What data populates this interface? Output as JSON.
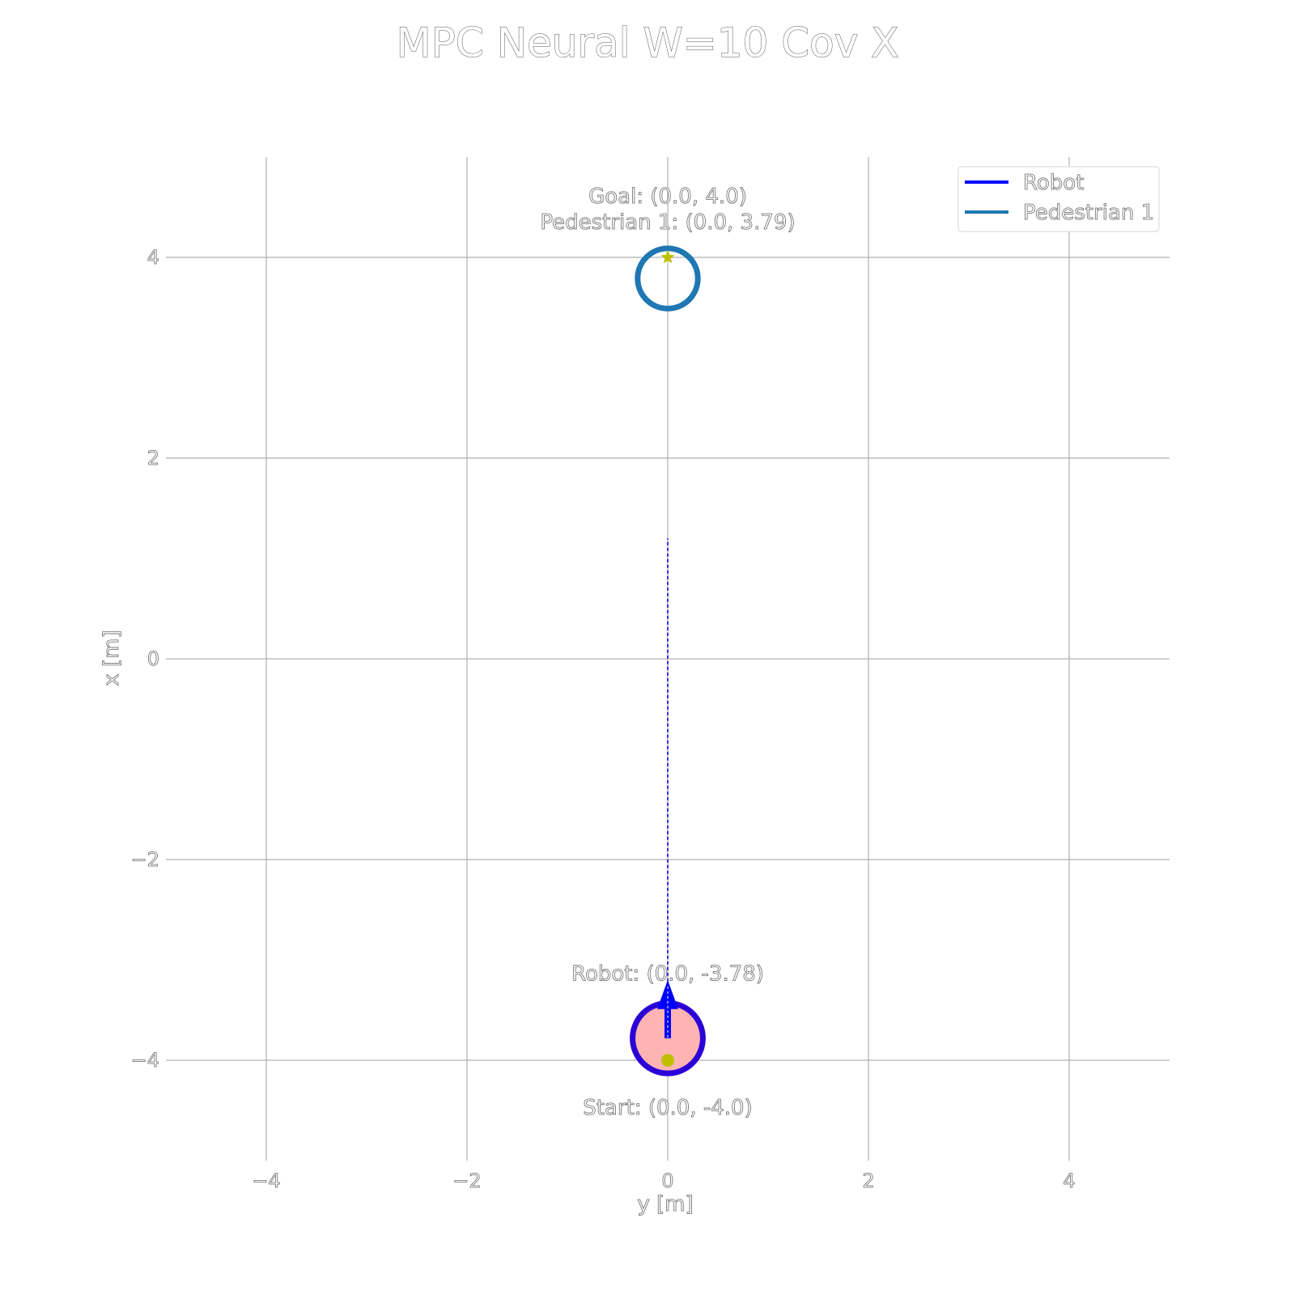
{
  "chart_data": {
    "type": "line",
    "title": "MPC Neural W=10 Cov X",
    "xlabel": "y [m]",
    "ylabel": "x [m]",
    "xlim": [
      -5,
      5
    ],
    "ylim": [
      -5,
      5
    ],
    "xticks": [
      -4,
      -2,
      0,
      2,
      4
    ],
    "yticks": [
      -4,
      -2,
      0,
      2,
      4
    ],
    "xtick_labels": [
      "−4",
      "−2",
      "0",
      "2",
      "4"
    ],
    "ytick_labels": [
      "−4",
      "−2",
      "0",
      "2",
      "4"
    ],
    "grid": true,
    "legend_position": "top-right",
    "legend": [
      {
        "name": "Robot",
        "color": "#0000ff"
      },
      {
        "name": "Pedestrian 1",
        "color": "#1f77b4"
      }
    ],
    "robot": {
      "position": [
        0.0,
        -3.78
      ],
      "radius": 0.35,
      "fill_color": "#ffb3b3",
      "edge_color": "#2a00d6",
      "heading_arrow_tip": [
        0.0,
        -3.2
      ],
      "label": "Robot: (0.0, -3.78)"
    },
    "predicted_path": {
      "x": [
        0.0,
        0.0
      ],
      "y": [
        -3.78,
        1.2
      ],
      "color": "#0000ff",
      "style": "dashed"
    },
    "pedestrian": {
      "position": [
        0.0,
        3.79
      ],
      "radius": 0.3,
      "edge_color": "#1f77b4",
      "label": "Pedestrian 1: (0.0, 3.79)"
    },
    "start": {
      "position": [
        0.0,
        -4.0
      ],
      "color": "#bfbf00",
      "label": "Start: (0.0, -4.0)"
    },
    "goal": {
      "position": [
        0.0,
        4.0
      ],
      "color": "#bfbf00",
      "label": "Goal: (0.0, 4.0)"
    }
  }
}
